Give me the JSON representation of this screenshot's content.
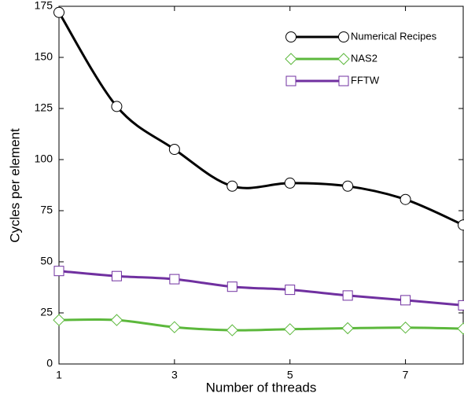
{
  "chart_data": {
    "type": "line",
    "x_label": "Number of threads",
    "y_label": "Cycles per element",
    "x": [
      1,
      2,
      3,
      4,
      5,
      6,
      7,
      8
    ],
    "series": [
      {
        "name": "Numerical Recipes",
        "color": "#000000",
        "marker": "circle",
        "values": [
          172,
          126,
          105,
          87,
          88.5,
          87,
          80.5,
          68
        ]
      },
      {
        "name": "NAS2",
        "color": "#5cb83c",
        "marker": "diamond",
        "values": [
          21.5,
          21.5,
          18,
          16.5,
          17,
          17.5,
          17.8,
          17.3
        ]
      },
      {
        "name": "FFTW",
        "color": "#7030a0",
        "marker": "square",
        "values": [
          45.5,
          43,
          41.5,
          37.8,
          36.3,
          33.5,
          31.2,
          28.7
        ]
      }
    ],
    "xlim": [
      1,
      8
    ],
    "xticks": [
      1,
      3,
      5,
      7
    ],
    "ylim": [
      0,
      175
    ],
    "yticks": [
      0,
      25,
      50,
      75,
      100,
      125,
      150,
      175
    ],
    "legend_position": "upper right"
  }
}
